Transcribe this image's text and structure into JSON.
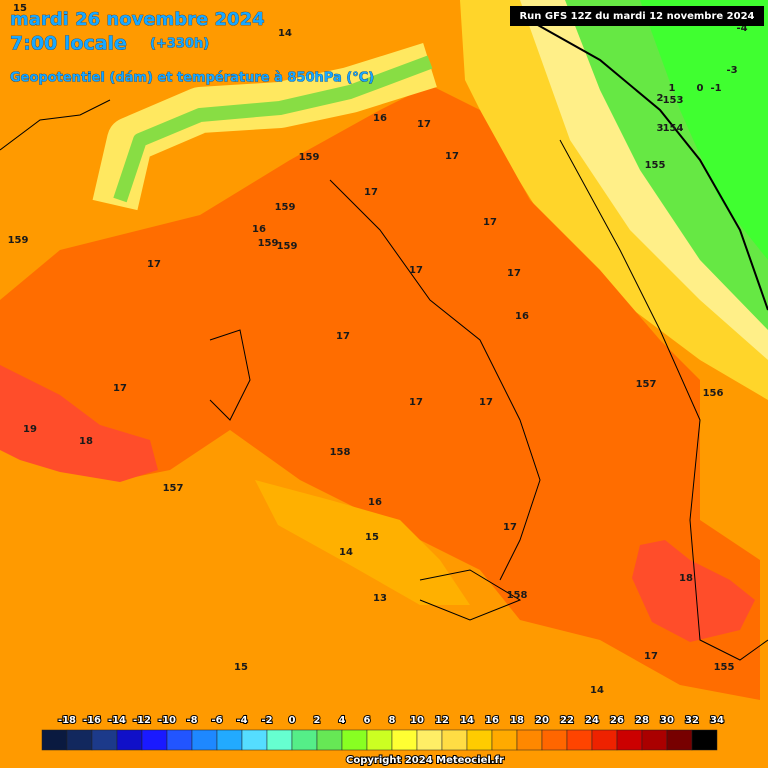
{
  "header": {
    "date": "mardi 26 novembre 2024",
    "time": "7:00 locale",
    "lead": "(+330h)",
    "subtitle": "Geopotentiel (dám) et température à 850hPa (°C)",
    "run": "Run GFS 12Z du mardi 12 novembre 2024"
  },
  "map_labels": [
    "15",
    "14",
    "-4",
    "-3",
    "1",
    "0",
    "-1",
    "2",
    "153",
    "3",
    "154",
    "155",
    "16",
    "17",
    "17",
    "159",
    "17",
    "159",
    "16",
    "17",
    "159",
    "159",
    "159",
    "17",
    "17",
    "17",
    "16",
    "17",
    "17",
    "157",
    "156",
    "17",
    "17",
    "19",
    "18",
    "158",
    "157",
    "16",
    "15",
    "17",
    "14",
    "18",
    "13",
    "158",
    "17",
    "15",
    "155",
    "14"
  ],
  "legend": {
    "labels": [
      -18,
      -16,
      -14,
      -12,
      -10,
      -8,
      -6,
      -4,
      -2,
      0,
      2,
      4,
      6,
      8,
      10,
      12,
      14,
      16,
      18,
      20,
      22,
      24,
      26,
      28,
      30,
      32,
      34
    ],
    "colors": [
      "#0a1a40",
      "#12285e",
      "#1c3a8a",
      "#1010c8",
      "#1a1aff",
      "#2255ff",
      "#1e88ff",
      "#22aaff",
      "#55ddff",
      "#66ffd0",
      "#55ee88",
      "#66e855",
      "#88ff22",
      "#ccff22",
      "#ffff33",
      "#ffee66",
      "#ffdd44",
      "#ffcc00",
      "#ffaa00",
      "#ff8800",
      "#ff6600",
      "#ff4400",
      "#ee2200",
      "#cc0000",
      "#aa0000",
      "#770000",
      "#000000"
    ]
  },
  "footer": "Copyright 2024 Meteociel.fr"
}
